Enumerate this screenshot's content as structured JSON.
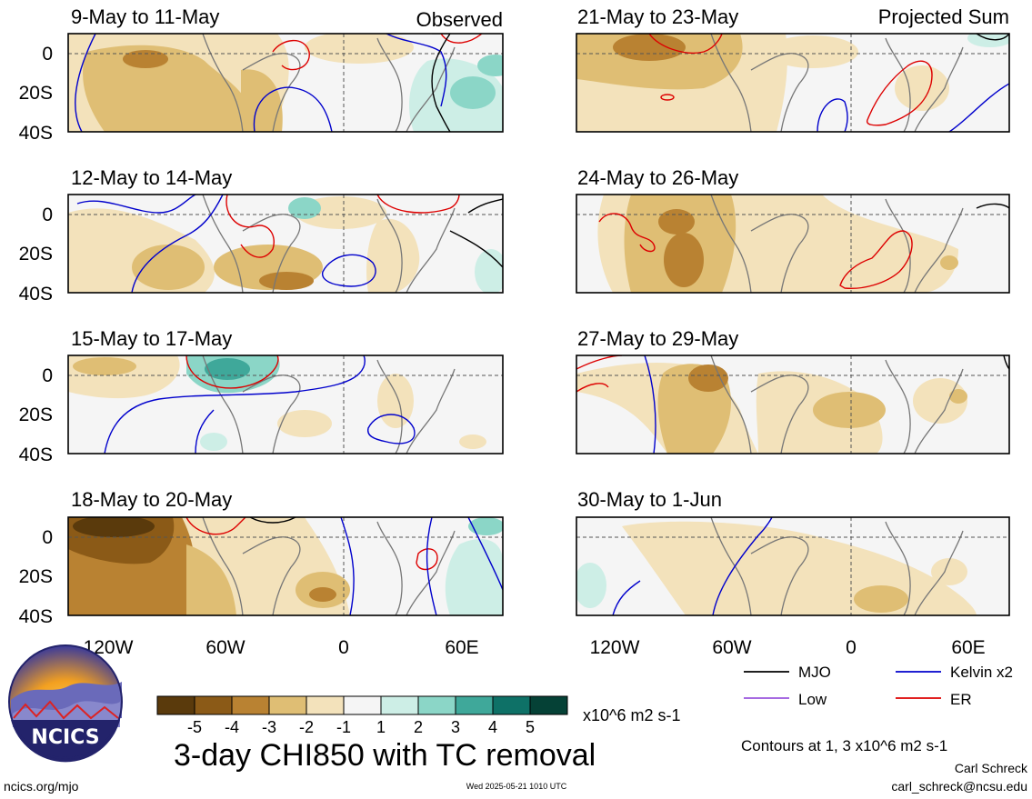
{
  "panel_titles": [
    {
      "left": "9-May to 11-May",
      "right": "Observed"
    },
    {
      "left": "12-May to 14-May",
      "right": ""
    },
    {
      "left": "15-May to 17-May",
      "right": ""
    },
    {
      "left": "18-May to 20-May",
      "right": ""
    },
    {
      "left": "21-May to 23-May",
      "right": "Projected Sum"
    },
    {
      "left": "24-May to 26-May",
      "right": ""
    },
    {
      "left": "27-May to 29-May",
      "right": ""
    },
    {
      "left": "30-May to 1-Jun",
      "right": ""
    }
  ],
  "lat_labels": [
    "0",
    "20S",
    "40S"
  ],
  "lon_labels": [
    "120W",
    "60W",
    "0",
    "60E"
  ],
  "colorbar": {
    "colors": [
      "#5a3a0c",
      "#8b5a17",
      "#b98232",
      "#dfbe74",
      "#f3e2bb",
      "#f5f5f5",
      "#cdeee6",
      "#8bd6c7",
      "#3fa89a",
      "#0e7167",
      "#054136"
    ],
    "labels": [
      "-5",
      "-4",
      "-3",
      "-2",
      "-1",
      "1",
      "2",
      "3",
      "4",
      "5"
    ],
    "units": "x10^6 m2 s-1"
  },
  "legend": {
    "items": [
      {
        "label": "MJO",
        "color": "#000000"
      },
      {
        "label": "Kelvin x2",
        "color": "#0000cc"
      },
      {
        "label": "Low",
        "color": "#9955dd"
      },
      {
        "label": "ER",
        "color": "#dd0000"
      }
    ],
    "contours_note": "Contours at 1, 3 x10^6 m2 s-1"
  },
  "main_title": "3-day CHI850 with TC removal",
  "logo_text": "NCICS",
  "footer": {
    "left": "ncics.org/mjo",
    "center": "Wed 2025-05-21 1010 UTC",
    "right_name": "Carl Schreck",
    "right_email": "carl_schreck@ncsu.edu"
  }
}
